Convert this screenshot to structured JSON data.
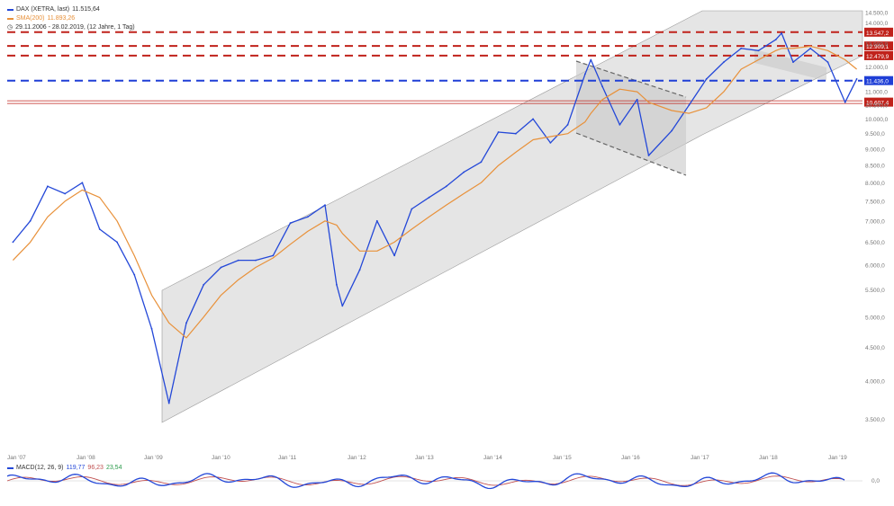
{
  "legend": {
    "dax_label": "DAX (XETRA, last)",
    "dax_value": "11.515,64",
    "sma_label": "SMA(200)",
    "sma_value": "11.893,26",
    "range_label": "29.11.2006 - 28.02.2019, (12 Jahre, 1 Tag)"
  },
  "macd_legend": {
    "label": "MACD(12, 26, 9)",
    "v1": "119,77",
    "v2": "96,23",
    "v3": "23,54"
  },
  "colors": {
    "dax": "#2448d8",
    "sma": "#e8913a",
    "resistance": "#c0221b",
    "support_blue": "#1f3fd6",
    "channel_fill": "#d6d6d6",
    "macd_signal": "#c05050"
  },
  "chart_data": {
    "type": "line",
    "x": [
      "2006-12",
      "2007-03",
      "2007-06",
      "2007-09",
      "2007-12",
      "2008-03",
      "2008-06",
      "2008-09",
      "2008-12",
      "2009-03",
      "2009-06",
      "2009-09",
      "2009-12",
      "2010-03",
      "2010-06",
      "2010-09",
      "2010-12",
      "2011-03",
      "2011-06",
      "2011-08",
      "2011-09",
      "2011-12",
      "2012-03",
      "2012-06",
      "2012-09",
      "2012-12",
      "2013-03",
      "2013-06",
      "2013-09",
      "2013-12",
      "2014-03",
      "2014-06",
      "2014-09",
      "2014-12",
      "2015-03",
      "2015-04",
      "2015-06",
      "2015-09",
      "2015-12",
      "2016-02",
      "2016-06",
      "2016-09",
      "2016-12",
      "2017-03",
      "2017-06",
      "2017-09",
      "2017-12",
      "2018-01",
      "2018-03",
      "2018-06",
      "2018-09",
      "2018-12",
      "2019-02"
    ],
    "series": [
      {
        "name": "DAX (XETRA, last)",
        "values": [
          6500,
          7000,
          7900,
          7700,
          8000,
          6800,
          6500,
          5800,
          4800,
          3700,
          4900,
          5600,
          5950,
          6100,
          6100,
          6200,
          6950,
          7100,
          7400,
          5600,
          5200,
          5900,
          7000,
          6200,
          7300,
          7600,
          7900,
          8300,
          8600,
          9550,
          9500,
          10000,
          9200,
          9800,
          11700,
          12300,
          11200,
          9800,
          10700,
          8800,
          9600,
          10500,
          11500,
          12200,
          12800,
          12700,
          13200,
          13500,
          12200,
          12800,
          12200,
          10600,
          11500
        ]
      },
      {
        "name": "SMA(200)",
        "values": [
          6100,
          6500,
          7100,
          7500,
          7800,
          7600,
          7000,
          6200,
          5400,
          4900,
          4650,
          5000,
          5400,
          5700,
          5950,
          6150,
          6450,
          6750,
          7000,
          6900,
          6700,
          6300,
          6300,
          6500,
          6800,
          7100,
          7400,
          7700,
          8000,
          8500,
          8900,
          9300,
          9400,
          9500,
          9900,
          10200,
          10700,
          11100,
          11000,
          10600,
          10300,
          10200,
          10400,
          11000,
          11900,
          12300,
          12700,
          12800,
          12800,
          12900,
          12700,
          12300,
          11900
        ]
      }
    ],
    "horizontal_lines": [
      {
        "value": 13547,
        "label": "13.547,2",
        "style": "dashed",
        "color": "#c0221b"
      },
      {
        "value": 12909,
        "label": "12.909,1",
        "style": "dashed",
        "color": "#c0221b"
      },
      {
        "value": 12479,
        "label": "12.479,9",
        "style": "dashed",
        "color": "#c0221b"
      },
      {
        "value": 11436,
        "label": "11.436,0",
        "style": "dashed",
        "color": "#1f3fd6"
      },
      {
        "value": 10607,
        "label": "10.607,4",
        "style": "double",
        "color": "#c0221b"
      }
    ],
    "x_tick_labels": [
      "Jan '07",
      "Jan '08",
      "Jan '09",
      "Jan '10",
      "Jan '11",
      "Jan '12",
      "Jan '13",
      "Jan '14",
      "Jan '15",
      "Jan '16",
      "Jan '17",
      "Jan '18",
      "Jan '19"
    ],
    "y_tick_labels": [
      "14.500,0",
      "14.000,0",
      "13.000,0",
      "12.000,0",
      "11.000,0",
      "10.500,0",
      "10.000,0",
      "9.500,0",
      "9.000,0",
      "8.500,0",
      "8.000,0",
      "7.500,0",
      "7.000,0",
      "6.500,0",
      "6.000,0",
      "5.500,0",
      "5.000,0",
      "4.500,0",
      "4.000,0",
      "3.500,0"
    ],
    "y_tick_values": [
      14500,
      14000,
      13000,
      12000,
      11000,
      10500,
      10000,
      9500,
      9000,
      8500,
      8000,
      7500,
      7000,
      6500,
      6000,
      5500,
      5000,
      4500,
      4000,
      3500
    ],
    "ylim": [
      3300,
      14600
    ],
    "xlim": [
      "2006-11",
      "2019-03"
    ],
    "y_scale": "log",
    "y_axis_side": "right",
    "grid": false,
    "macd": {
      "label": "MACD(12, 26, 9)",
      "value": 119.77,
      "signal": 96.23,
      "histogram": 23.54,
      "axis_labels": [
        "0,0"
      ]
    }
  }
}
